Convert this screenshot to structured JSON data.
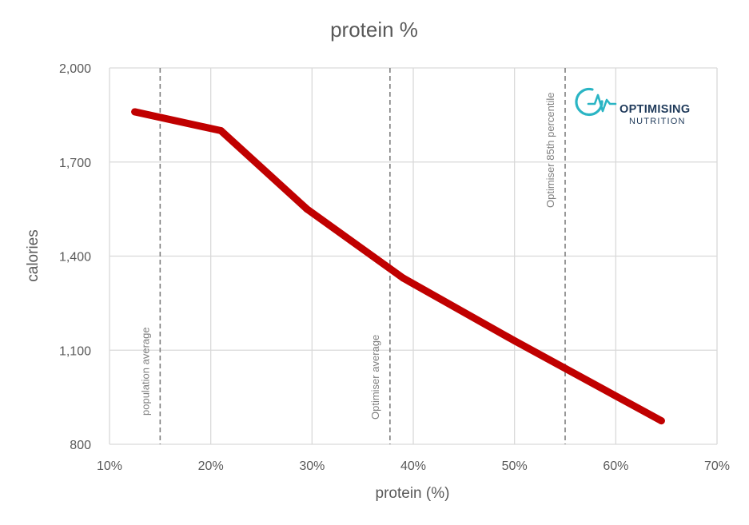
{
  "chart_data": {
    "type": "line",
    "title": "protein %",
    "xlabel": "protein (%)",
    "ylabel": "calories",
    "xlim": [
      10,
      70
    ],
    "ylim": [
      800,
      2000
    ],
    "x_ticks": [
      10,
      20,
      30,
      40,
      50,
      60,
      70
    ],
    "x_tick_labels": [
      "10%",
      "20%",
      "30%",
      "40%",
      "50%",
      "60%",
      "70%"
    ],
    "y_ticks": [
      800,
      1100,
      1400,
      1700,
      2000
    ],
    "y_tick_labels": [
      "800",
      "1,100",
      "1,400",
      "1,700",
      "2,000"
    ],
    "grid": true,
    "series": [
      {
        "color": "#c00000",
        "x": [
          12.5,
          21,
          29.5,
          39,
          50,
          64.5
        ],
        "y": [
          1860,
          1800,
          1550,
          1330,
          1130,
          875
        ]
      }
    ],
    "reference_lines": [
      {
        "x": 15,
        "label": "population average"
      },
      {
        "x": 37.7,
        "label": "Optimiser average"
      },
      {
        "x": 55,
        "label": "Optimiser 85th percentile"
      }
    ]
  },
  "logo": {
    "line1": "OPTIMISING",
    "line2": "NUTRITION",
    "accent_color": "#2ab5c4",
    "icon": "pulse-icon"
  },
  "colors": {
    "line": "#c00000",
    "grid": "#d9d9d9",
    "text": "#595959",
    "refline": "#7f7f7f"
  }
}
